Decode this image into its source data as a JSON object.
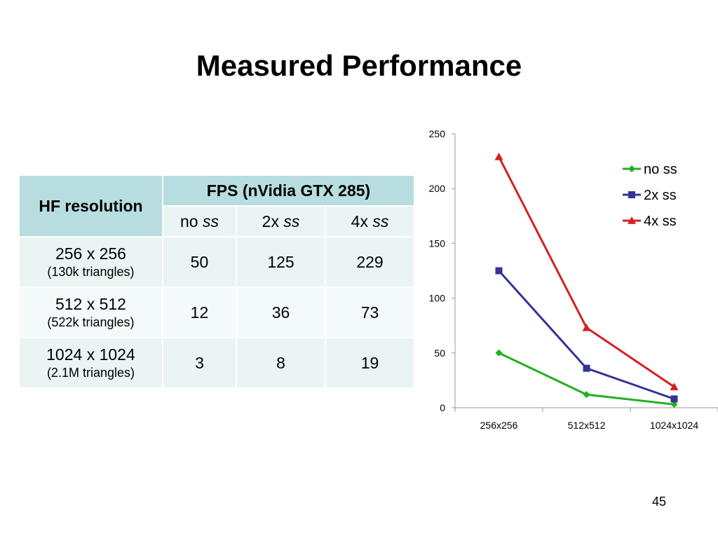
{
  "slide": {
    "title": "Measured Performance",
    "page_number": "45"
  },
  "table": {
    "header_row_label": "HF resolution",
    "header_group": "FPS (nVidia GTX 285)",
    "columns": [
      {
        "prefix": "no ",
        "em": "ss"
      },
      {
        "prefix": "2x ",
        "em": "ss"
      },
      {
        "prefix": "4x ",
        "em": "ss"
      }
    ],
    "rows": [
      {
        "resolution": "256 x 256",
        "triangles": "(130k triangles)",
        "values": [
          "50",
          "125",
          "229"
        ]
      },
      {
        "resolution": "512 x 512",
        "triangles": "(522k triangles)",
        "values": [
          "12",
          "36",
          "73"
        ]
      },
      {
        "resolution": "1024 x 1024",
        "triangles": "(2.1M triangles)",
        "values": [
          "3",
          "8",
          "19"
        ]
      }
    ]
  },
  "chart_data": {
    "type": "line",
    "categories": [
      "256x256",
      "512x512",
      "1024x1024"
    ],
    "series": [
      {
        "name": "no ss",
        "values": [
          50,
          12,
          3
        ],
        "color": "#22b022",
        "marker": "diamond"
      },
      {
        "name": "2x ss",
        "values": [
          125,
          36,
          8
        ],
        "color": "#333399",
        "marker": "square"
      },
      {
        "name": "4x ss",
        "values": [
          229,
          73,
          19
        ],
        "color": "#d42020",
        "marker": "triangle"
      }
    ],
    "ylim": [
      0,
      250
    ],
    "yticks": [
      "0",
      "50",
      "100",
      "150",
      "200",
      "250"
    ],
    "grid": false,
    "legend": "top-right"
  }
}
